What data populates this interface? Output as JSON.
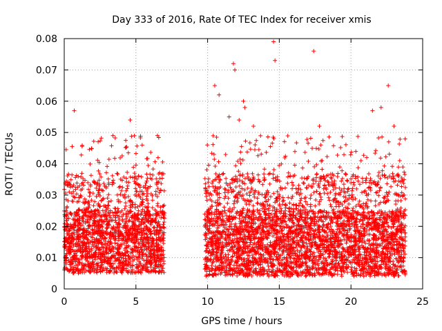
{
  "chart_data": {
    "type": "scatter",
    "title": "Day 333 of 2016, Rate Of TEC Index for receiver xmis",
    "xlabel": "GPS time / hours",
    "ylabel": "ROTI / TECUs",
    "xlim": [
      0,
      25
    ],
    "ylim": [
      0,
      0.08
    ],
    "x_ticks": [
      0,
      5,
      10,
      15,
      20,
      25
    ],
    "x_tick_labels": [
      "0",
      "5",
      "10",
      "15",
      "20",
      "25"
    ],
    "y_ticks": [
      0,
      0.01,
      0.02,
      0.03,
      0.04,
      0.05,
      0.06,
      0.07,
      0.08
    ],
    "y_tick_labels": [
      "0",
      "0.01",
      "0.02",
      "0.03",
      "0.04",
      "0.05",
      "0.06",
      "0.07",
      "0.08"
    ],
    "grid": true,
    "marker": "+",
    "color": "#ff0000",
    "series": [
      {
        "name": "ROTI",
        "description": "dense cloud of ROTI samples; data gap between ~7 and ~10 hours",
        "segments": [
          {
            "x_range": [
              0.0,
              7.0
            ],
            "typical_range": [
              0.005,
              0.025
            ]
          },
          {
            "x_range": [
              9.8,
              23.8
            ],
            "typical_range": [
              0.004,
              0.025
            ]
          }
        ],
        "notable_points": [
          {
            "x": 0.7,
            "y": 0.057
          },
          {
            "x": 1.3,
            "y": 0.034
          },
          {
            "x": 3.4,
            "y": 0.049
          },
          {
            "x": 4.6,
            "y": 0.054
          },
          {
            "x": 6.5,
            "y": 0.049
          },
          {
            "x": 10.5,
            "y": 0.065
          },
          {
            "x": 10.8,
            "y": 0.062
          },
          {
            "x": 11.5,
            "y": 0.055
          },
          {
            "x": 11.8,
            "y": 0.072
          },
          {
            "x": 11.9,
            "y": 0.07
          },
          {
            "x": 12.2,
            "y": 0.054
          },
          {
            "x": 12.5,
            "y": 0.06
          },
          {
            "x": 12.6,
            "y": 0.058
          },
          {
            "x": 13.2,
            "y": 0.052
          },
          {
            "x": 14.6,
            "y": 0.079
          },
          {
            "x": 14.7,
            "y": 0.073
          },
          {
            "x": 17.4,
            "y": 0.076
          },
          {
            "x": 17.8,
            "y": 0.052
          },
          {
            "x": 17.9,
            "y": 0.046
          },
          {
            "x": 20.7,
            "y": 0.041
          },
          {
            "x": 21.1,
            "y": 0.042
          },
          {
            "x": 21.5,
            "y": 0.057
          },
          {
            "x": 22.1,
            "y": 0.058
          },
          {
            "x": 22.6,
            "y": 0.065
          },
          {
            "x": 23.0,
            "y": 0.052
          },
          {
            "x": 23.4,
            "y": 0.041
          }
        ]
      }
    ]
  }
}
